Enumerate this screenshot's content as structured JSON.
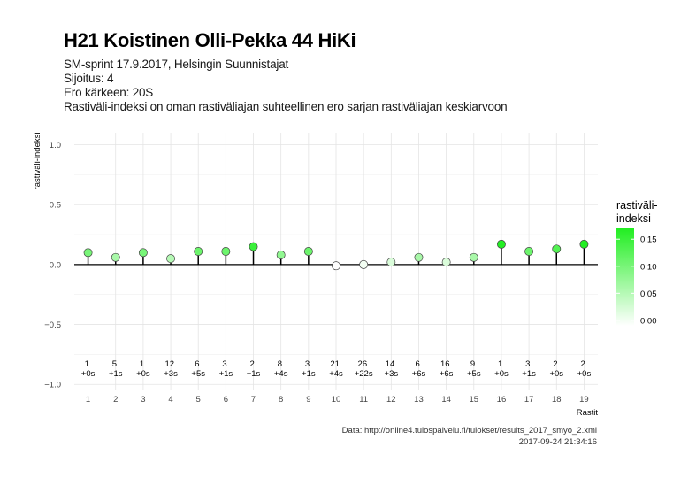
{
  "header": {
    "title": "H21 Koistinen Olli-Pekka 44 HiKi",
    "subtitle_lines": [
      "SM-sprint 17.9.2017, Helsingin Suunnistajat",
      "Sijoitus: 4",
      "Ero kärkeen: 20S",
      "Rastiväli-indeksi on oman rastiväliajan suhteellinen ero sarjan rastiväliajan keskiarvoon"
    ]
  },
  "caption": {
    "source": "Data: http://online4.tulospalvelu.fi/tulokset/results_2017_smyo_2.xml",
    "timestamp": "2017-09-24 21:34:16"
  },
  "colors": {
    "low": "#ffffff",
    "high": "#22ee22",
    "grid": "#e4e4e4",
    "zero_line": "#000000"
  },
  "chart_data": {
    "type": "lollipop",
    "xlabel": "Rastit",
    "ylabel": "rastiväli-indeksi",
    "ylim": [
      -1.05,
      1.1
    ],
    "yticks": [
      -1.0,
      -0.5,
      0.0,
      0.5,
      1.0
    ],
    "ytick_labels": [
      "−1.0",
      "−0.5",
      "0.0",
      "0.5",
      "1.0"
    ],
    "grid": true,
    "categories": [
      "1",
      "2",
      "3",
      "4",
      "5",
      "6",
      "7",
      "8",
      "9",
      "10",
      "11",
      "12",
      "13",
      "14",
      "15",
      "16",
      "17",
      "18",
      "19"
    ],
    "values": [
      0.1,
      0.06,
      0.1,
      0.05,
      0.11,
      0.11,
      0.15,
      0.08,
      0.11,
      -0.01,
      0.0,
      0.02,
      0.06,
      0.02,
      0.06,
      0.17,
      0.11,
      0.13,
      0.17
    ],
    "split_rank_labels": [
      "1.",
      "5.",
      "1.",
      "12.",
      "6.",
      "3.",
      "2.",
      "8.",
      "3.",
      "21.",
      "26.",
      "14.",
      "6.",
      "16.",
      "9.",
      "1.",
      "3.",
      "2.",
      "2."
    ],
    "split_diff_labels": [
      "+0s",
      "+1s",
      "+0s",
      "+3s",
      "+5s",
      "+1s",
      "+1s",
      "+4s",
      "+1s",
      "+4s",
      "+22s",
      "+3s",
      "+6s",
      "+6s",
      "+5s",
      "+0s",
      "+1s",
      "+0s",
      "+0s"
    ],
    "legend": {
      "title_lines": [
        "rastiväli-",
        "indeksi"
      ],
      "placement": "right",
      "range": [
        -0.01,
        0.17
      ],
      "ticks": [
        0.0,
        0.05,
        0.1,
        0.15
      ],
      "tick_labels": [
        "0.00",
        "0.05",
        "0.10",
        "0.15"
      ]
    }
  }
}
